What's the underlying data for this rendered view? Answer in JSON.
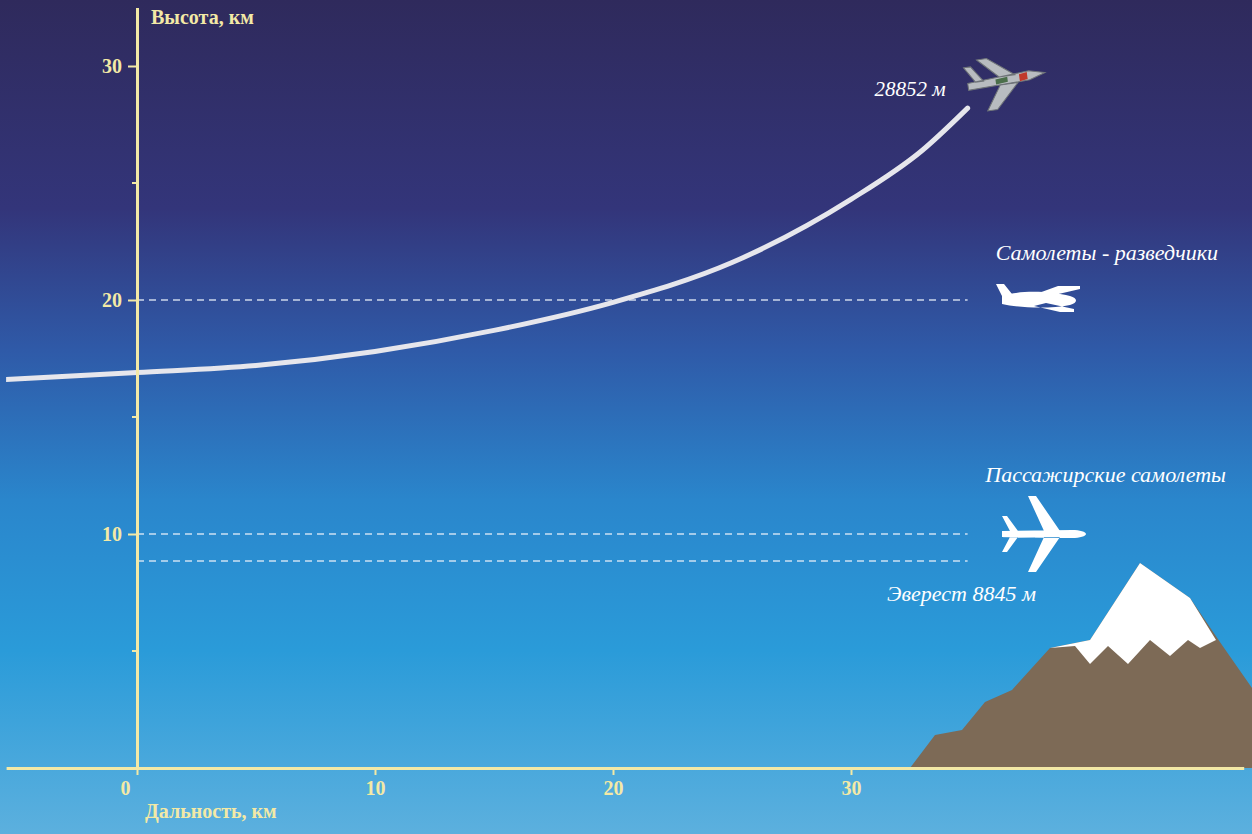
{
  "chart_data": {
    "type": "line",
    "x_label": "Дальность, км",
    "y_label": "Высота, км",
    "xlim": [
      -5.5,
      46.5
    ],
    "ylim": [
      0,
      32.5
    ],
    "xticks": [
      0,
      10,
      20,
      30
    ],
    "yticks": [
      10,
      20,
      30
    ],
    "yminorticks": [
      5,
      15,
      25
    ],
    "grid": false,
    "series": [
      {
        "color": "#e6e6ec",
        "line_style": "solid",
        "x": [
          -5.5,
          0,
          5,
          10,
          15,
          20,
          25,
          30,
          33,
          34.9
        ],
        "values": [
          16.6,
          16.9,
          17.2,
          17.8,
          18.7,
          19.9,
          21.6,
          24.3,
          26.4,
          28.2
        ]
      }
    ],
    "annotations": [
      {
        "text": "28852 м"
      }
    ],
    "reference_lines": [
      {
        "value": 20,
        "label": "Самолеты - разведчики"
      },
      {
        "value": 10,
        "label": "Пассажирские самолеты"
      },
      {
        "value": 8.845,
        "label": "Эверест 8845 м"
      }
    ]
  }
}
